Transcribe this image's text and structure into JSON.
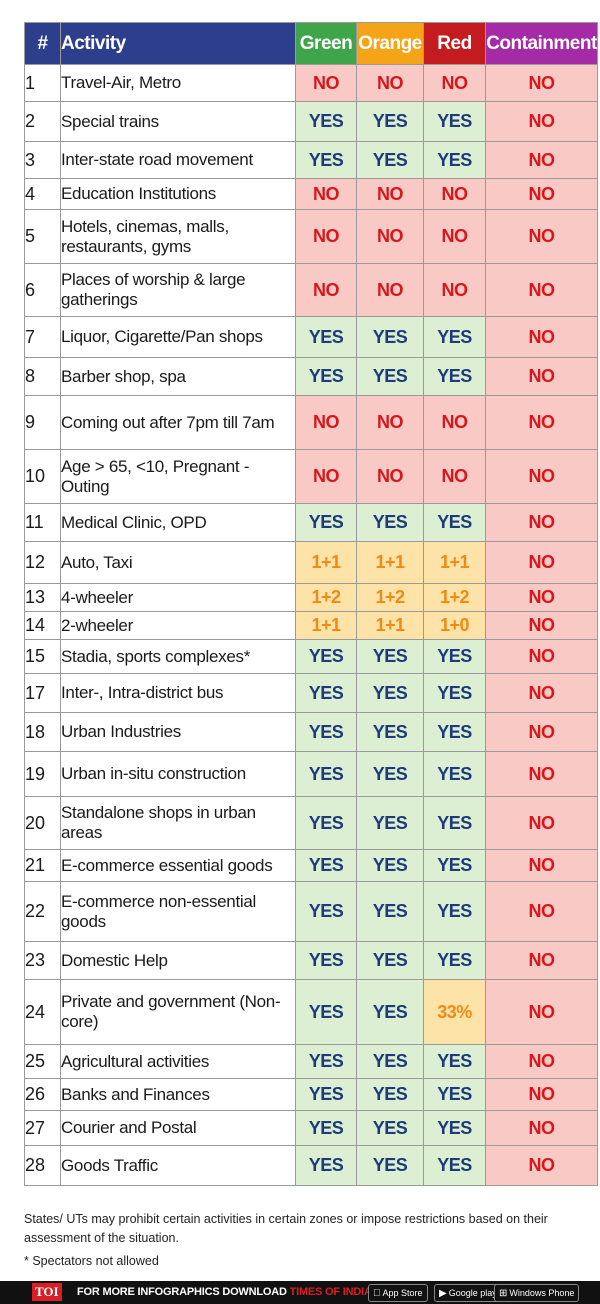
{
  "header": {
    "num": "#",
    "activity": "Activity",
    "green": "Green",
    "orange": "Orange",
    "red": "Red",
    "containment": "Containment"
  },
  "rows": [
    {
      "num": "1",
      "activity": "Travel-Air, Metro",
      "green": "NO",
      "orange": "NO",
      "red": "NO",
      "containment": "NO",
      "h": 37
    },
    {
      "num": "2",
      "activity": "Special trains",
      "green": "YES",
      "orange": "YES",
      "red": "YES",
      "containment": "NO",
      "h": 40
    },
    {
      "num": "3",
      "activity": "Inter-state road movement",
      "green": "YES",
      "orange": "YES",
      "red": "YES",
      "containment": "NO",
      "h": 37
    },
    {
      "num": "4",
      "activity": "Education Institutions",
      "green": "NO",
      "orange": "NO",
      "red": "NO",
      "containment": "NO",
      "h": 31
    },
    {
      "num": "5",
      "activity": "Hotels, cinemas, malls, restaurants, gyms",
      "green": "NO",
      "orange": "NO",
      "red": "NO",
      "containment": "NO",
      "h": 54
    },
    {
      "num": "6",
      "activity": "Places of worship & large gatherings",
      "green": "NO",
      "orange": "NO",
      "red": "NO",
      "containment": "NO",
      "h": 53
    },
    {
      "num": "7",
      "activity": "Liquor, Cigarette/Pan shops",
      "green": "YES",
      "orange": "YES",
      "red": "YES",
      "containment": "NO",
      "h": 41
    },
    {
      "num": "8",
      "activity": "Barber shop, spa",
      "green": "YES",
      "orange": "YES",
      "red": "YES",
      "containment": "NO",
      "h": 38
    },
    {
      "num": "9",
      "activity": "Coming out after 7pm till 7am",
      "green": "NO",
      "orange": "NO",
      "red": "NO",
      "containment": "NO",
      "h": 54
    },
    {
      "num": "10",
      "activity": "Age > 65, <10, Pregnant - Outing",
      "green": "NO",
      "orange": "NO",
      "red": "NO",
      "containment": "NO",
      "h": 54
    },
    {
      "num": "11",
      "activity": "Medical Clinic, OPD",
      "green": "YES",
      "orange": "YES",
      "red": "YES",
      "containment": "NO",
      "h": 38
    },
    {
      "num": "12",
      "activity": "Auto, Taxi",
      "green": "1+1",
      "orange": "1+1",
      "red": "1+1",
      "containment": "NO",
      "h": 42
    },
    {
      "num": "13",
      "activity": "4-wheeler",
      "green": "1+2",
      "orange": "1+2",
      "red": "1+2",
      "containment": "NO",
      "h": 28
    },
    {
      "num": "14",
      "activity": "2-wheeler",
      "green": "1+1",
      "orange": "1+1",
      "red": "1+0",
      "containment": "NO",
      "h": 28
    },
    {
      "num": "15",
      "activity": "Stadia, sports complexes*",
      "green": "YES",
      "orange": "YES",
      "red": "YES",
      "containment": "NO",
      "h": 34
    },
    {
      "num": "17",
      "activity": "Inter-, Intra-district bus",
      "green": "YES",
      "orange": "YES",
      "red": "YES",
      "containment": "NO",
      "h": 39
    },
    {
      "num": "18",
      "activity": "Urban Industries",
      "green": "YES",
      "orange": "YES",
      "red": "YES",
      "containment": "NO",
      "h": 39
    },
    {
      "num": "19",
      "activity": "Urban in-situ construction",
      "green": "YES",
      "orange": "YES",
      "red": "YES",
      "containment": "NO",
      "h": 45
    },
    {
      "num": "20",
      "activity": "Standalone shops in urban areas",
      "green": "YES",
      "orange": "YES",
      "red": "YES",
      "containment": "NO",
      "h": 53
    },
    {
      "num": "21",
      "activity": "E-commerce essential goods",
      "green": "YES",
      "orange": "YES",
      "red": "YES",
      "containment": "NO",
      "h": 32
    },
    {
      "num": "22",
      "activity": "E-commerce non-essential goods",
      "green": "YES",
      "orange": "YES",
      "red": "YES",
      "containment": "NO",
      "h": 60
    },
    {
      "num": "23",
      "activity": "Domestic Help",
      "green": "YES",
      "orange": "YES",
      "red": "YES",
      "containment": "NO",
      "h": 38
    },
    {
      "num": "24",
      "activity": "Private and government (Non-core)",
      "green": "YES",
      "orange": "YES",
      "red": "33%",
      "containment": "NO",
      "h": 65
    },
    {
      "num": "25",
      "activity": "Agricultural activities",
      "green": "YES",
      "orange": "YES",
      "red": "YES",
      "containment": "NO",
      "h": 34
    },
    {
      "num": "26",
      "activity": "Banks and Finances",
      "green": "YES",
      "orange": "YES",
      "red": "YES",
      "containment": "NO",
      "h": 32
    },
    {
      "num": "27",
      "activity": "Courier and Postal",
      "green": "YES",
      "orange": "YES",
      "red": "YES",
      "containment": "NO",
      "h": 35
    },
    {
      "num": "28",
      "activity": "Goods Traffic",
      "green": "YES",
      "orange": "YES",
      "red": "YES",
      "containment": "NO",
      "h": 40
    }
  ],
  "notes": {
    "line1": "States/ UTs may prohibit certain activities in certain zones or impose restrictions based on their assessment of the situation.",
    "line2": "* Spectators not allowed"
  },
  "footer": {
    "brand": "TOI",
    "text_prefix": "FOR MORE  INFOGRAPHICS DOWNLOAD",
    "text_highlight": "TIMES OF INDIA APP",
    "badges": [
      "App Store",
      "Google play",
      "Windows Phone"
    ]
  },
  "colors": {
    "header_blue": "#2c3e8c",
    "green": "#3ea54a",
    "orange": "#f6a417",
    "red": "#c41b1f",
    "containment": "#a42aa6",
    "yes_text": "#1f3a7a",
    "no_text": "#d6181c",
    "amber_text": "#f18a12"
  }
}
